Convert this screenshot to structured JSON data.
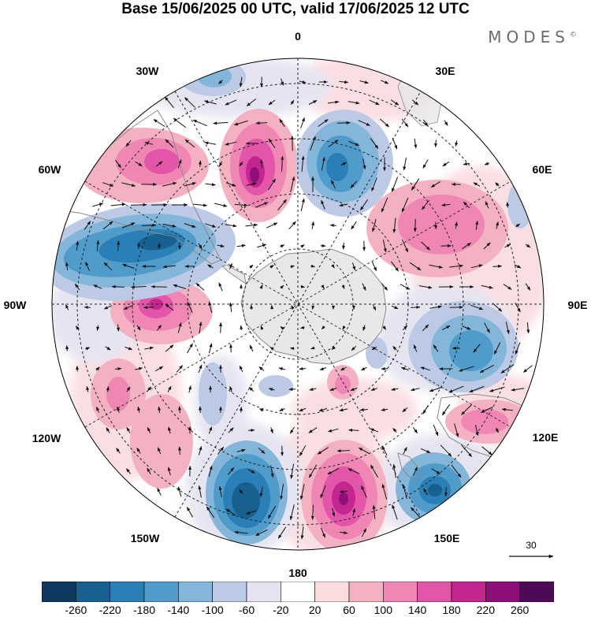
{
  "title": "Base 15/06/2025 00 UTC, valid 17/06/2025 12 UTC",
  "logo": {
    "text": "MODES",
    "mark": "©"
  },
  "longitude_labels": [
    {
      "id": "0",
      "text": "0"
    },
    {
      "id": "30e",
      "text": "30E"
    },
    {
      "id": "60e",
      "text": "60E"
    },
    {
      "id": "90e",
      "text": "90E"
    },
    {
      "id": "120e",
      "text": "120E"
    },
    {
      "id": "150e",
      "text": "150E"
    },
    {
      "id": "180",
      "text": "180"
    },
    {
      "id": "150w",
      "text": "150W"
    },
    {
      "id": "120w",
      "text": "120W"
    },
    {
      "id": "90w",
      "text": "90W"
    },
    {
      "id": "60w",
      "text": "60W"
    },
    {
      "id": "30w",
      "text": "30W"
    }
  ],
  "wind_scale": {
    "label": "30"
  },
  "colorbar": {
    "labels": [
      "-260",
      "-220",
      "-180",
      "-140",
      "-100",
      "-60",
      "-20",
      "20",
      "60",
      "100",
      "140",
      "180",
      "220",
      "260"
    ],
    "colors": [
      "#0d3a5e",
      "#17608f",
      "#2a7fb6",
      "#4f9ccb",
      "#84b6da",
      "#bccae6",
      "#e3e3f1",
      "#ffffff",
      "#fadcdf",
      "#f4b1c2",
      "#ef86b4",
      "#e255a8",
      "#c3268f",
      "#8e0f7a",
      "#4d0a57"
    ]
  },
  "projection": {
    "type": "south polar stereographic"
  },
  "map_colors": {
    "land": "#e8e8e8",
    "coast": "#8a8a8a",
    "ocean": "#ffffff"
  }
}
